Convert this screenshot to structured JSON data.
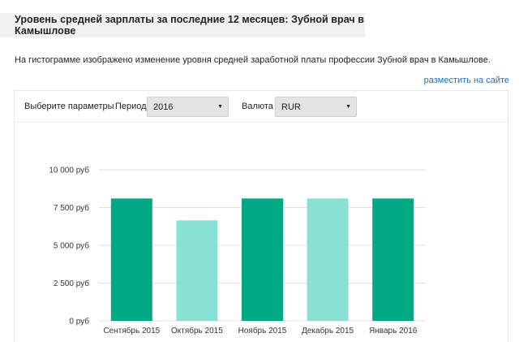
{
  "header": {
    "title": "Уровень средней зарплаты за последние 12 месяцев: Зубной врач в Камышлове"
  },
  "description": "На гистограмме изображено изменение уровня средней заработной платы профессии Зубной врач в Камышлове.",
  "place_link": "разместить на сайте",
  "controls": {
    "params_label": "Выберите параметры",
    "period_label": "Период",
    "period_value": "2016",
    "currency_label": "Валюта",
    "currency_value": "RUR",
    "caret_icon": "▼"
  },
  "colors": {
    "dark": "#00a884",
    "light": "#89e0d4",
    "grid": "#e0e0e0"
  },
  "chart_data": {
    "type": "bar",
    "categories": [
      "Сентябрь 2015",
      "Октябрь 2015",
      "Ноябрь 2015",
      "Декабрь 2015",
      "Январь 2016"
    ],
    "values": [
      8100,
      6650,
      8100,
      8100,
      8100
    ],
    "bar_colors": [
      "#00a884",
      "#89e0d4",
      "#00a884",
      "#89e0d4",
      "#00a884"
    ],
    "ylim": [
      0,
      10000
    ],
    "yticks": [
      0,
      2500,
      5000,
      7500,
      10000
    ],
    "ytick_labels": [
      "0 руб",
      "2 500 руб",
      "5 000 руб",
      "7 500 руб",
      "10 000 руб"
    ],
    "grid": true,
    "title": "",
    "xlabel": "",
    "ylabel": ""
  }
}
